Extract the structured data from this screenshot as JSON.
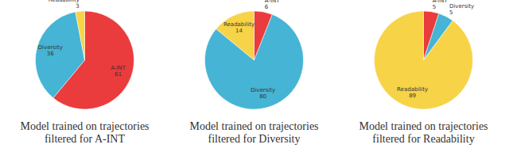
{
  "chart_data": [
    {
      "type": "pie",
      "title": "Model trained on trajectories filtered for A-INT",
      "categories": [
        "A-INT",
        "Diversity",
        "Readability"
      ],
      "values": [
        61,
        36,
        3
      ],
      "colors": [
        "#ea3b3d",
        "#46b4d4",
        "#f7d348"
      ],
      "data_labels": true
    },
    {
      "type": "pie",
      "title": "Model trained on trajectories filtered for Diversity",
      "categories": [
        "A-INT",
        "Diversity",
        "Readability"
      ],
      "values": [
        6,
        80,
        14
      ],
      "colors": [
        "#ea3b3d",
        "#46b4d4",
        "#f7d348"
      ],
      "data_labels": true
    },
    {
      "type": "pie",
      "title": "Model trained on trajectories filtered for Readability",
      "categories": [
        "A-INT",
        "Diversity",
        "Readability"
      ],
      "values": [
        5,
        5,
        89
      ],
      "colors": [
        "#ea3b3d",
        "#46b4d4",
        "#f7d348"
      ],
      "data_labels": true
    }
  ]
}
